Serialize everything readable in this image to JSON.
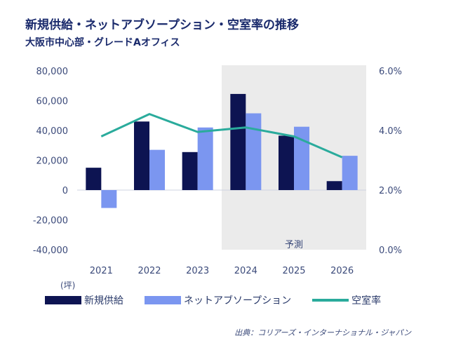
{
  "title": "新規供給・ネットアブソープション・空室率の推移",
  "subtitle": "大阪市中心部・グレードAオフィス",
  "unit_label": "(坪)",
  "forecast_label": "予測",
  "source": "出典：コリアーズ・インターナショナル・ジャパン",
  "colors": {
    "supply": "#0d1452",
    "absorption": "#7b96f0",
    "vacancy": "#2aab9c",
    "forecast_bg": "#ebebeb"
  },
  "chart_data": {
    "type": "bar",
    "title": "新規供給・ネットアブソープション・空室率の推移",
    "subtitle": "大阪市中心部・グレードAオフィス",
    "categories": [
      "2021",
      "2022",
      "2023",
      "2024",
      "2025",
      "2026"
    ],
    "forecast_start": "2024",
    "series": [
      {
        "name": "新規供給",
        "type": "bar",
        "axis": "left",
        "values": [
          15000,
          46000,
          25500,
          64500,
          36500,
          6000
        ]
      },
      {
        "name": "ネットアブソープション",
        "type": "bar",
        "axis": "left",
        "values": [
          -12000,
          27000,
          42000,
          51500,
          42500,
          23000
        ]
      },
      {
        "name": "空室率",
        "type": "line",
        "axis": "right",
        "values": [
          3.8,
          4.55,
          3.95,
          4.1,
          3.8,
          3.1
        ]
      }
    ],
    "ylim": [
      -40000,
      80000
    ],
    "yticks": [
      "80,000",
      "60,000",
      "40,000",
      "20,000",
      "0",
      "-20,000",
      "-40,000"
    ],
    "ytick_values": [
      80000,
      60000,
      40000,
      20000,
      0,
      -20000,
      -40000
    ],
    "y2lim": [
      0,
      6
    ],
    "y2ticks": [
      "6.0%",
      "4.0%",
      "2.0%",
      "0.0%"
    ],
    "y2tick_values": [
      6,
      4,
      2,
      0
    ],
    "ylabel": "(坪)",
    "grid": false,
    "legend": "bottom"
  }
}
